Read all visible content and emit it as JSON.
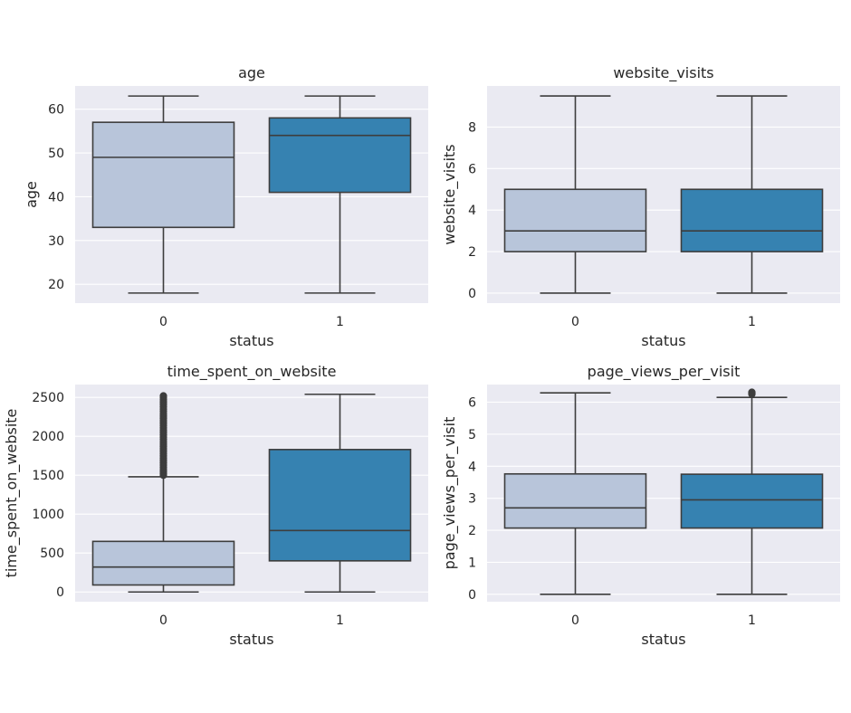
{
  "chart_data": [
    {
      "type": "box",
      "title": "age",
      "xlabel": "status",
      "ylabel": "age",
      "categories": [
        "0",
        "1"
      ],
      "colors": [
        "#b8c5da",
        "#3682b1"
      ],
      "ylim": [
        15.7,
        65.3
      ],
      "yticks": [
        20,
        30,
        40,
        50,
        60
      ],
      "grid": true,
      "boxes": [
        {
          "whislo": 18,
          "q1": 33,
          "med": 49,
          "q3": 57,
          "whishi": 63,
          "fliers": []
        },
        {
          "whislo": 18,
          "q1": 41,
          "med": 54,
          "q3": 58,
          "whishi": 63,
          "fliers": []
        }
      ]
    },
    {
      "type": "box",
      "title": "website_visits",
      "xlabel": "status",
      "ylabel": "website_visits",
      "categories": [
        "0",
        "1"
      ],
      "colors": [
        "#b8c5da",
        "#3682b1"
      ],
      "ylim": [
        -0.48,
        9.98
      ],
      "yticks": [
        0,
        2,
        4,
        6,
        8
      ],
      "grid": true,
      "boxes": [
        {
          "whislo": 0,
          "q1": 2,
          "med": 3,
          "q3": 5,
          "whishi": 9.5,
          "fliers": []
        },
        {
          "whislo": 0,
          "q1": 2,
          "med": 3,
          "q3": 5,
          "whishi": 9.5,
          "fliers": []
        }
      ]
    },
    {
      "type": "box",
      "title": "time_spent_on_website",
      "xlabel": "status",
      "ylabel": "time_spent_on_website",
      "categories": [
        "0",
        "1"
      ],
      "colors": [
        "#b8c5da",
        "#3682b1"
      ],
      "ylim": [
        -125,
        2665
      ],
      "yticks": [
        0,
        500,
        1000,
        1500,
        2000,
        2500
      ],
      "grid": true,
      "boxes": [
        {
          "whislo": 0,
          "q1": 90,
          "med": 320,
          "q3": 650,
          "whishi": 1480,
          "fliers": [
            1500,
            1520,
            1545,
            1570,
            1600,
            1630,
            1660,
            1690,
            1720,
            1750,
            1780,
            1810,
            1840,
            1870,
            1900,
            1930,
            1960,
            1990,
            2020,
            2050,
            2080,
            2110,
            2140,
            2170,
            2200,
            2230,
            2260,
            2290,
            2320,
            2350,
            2380,
            2410,
            2440,
            2470,
            2500,
            2520
          ]
        },
        {
          "whislo": 0,
          "q1": 400,
          "med": 790,
          "q3": 1830,
          "whishi": 2540,
          "fliers": []
        }
      ]
    },
    {
      "type": "box",
      "title": "page_views_per_visit",
      "xlabel": "status",
      "ylabel": "page_views_per_visit",
      "categories": [
        "0",
        "1"
      ],
      "colors": [
        "#b8c5da",
        "#3682b1"
      ],
      "ylim": [
        -0.23,
        6.55
      ],
      "yticks": [
        0,
        1,
        2,
        3,
        4,
        5,
        6
      ],
      "grid": true,
      "boxes": [
        {
          "whislo": 0,
          "q1": 2.07,
          "med": 2.7,
          "q3": 3.76,
          "whishi": 6.29,
          "fliers": []
        },
        {
          "whislo": 0,
          "q1": 2.07,
          "med": 2.95,
          "q3": 3.75,
          "whishi": 6.15,
          "fliers": [
            6.25,
            6.27,
            6.29,
            6.31
          ]
        }
      ]
    }
  ]
}
